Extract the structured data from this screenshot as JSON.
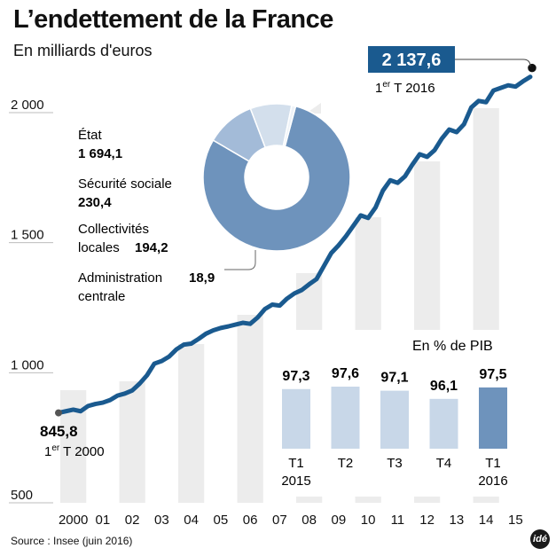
{
  "title": "L’endettement de la France",
  "subtitle": "En milliards d'euros",
  "source": "Source : Insee (juin 2016)",
  "logo": "idé",
  "colors": {
    "line": "#1a5a8f",
    "column": "#ececec",
    "bar": "#c8d7e8",
    "bar_highlight": "#6e93bc",
    "callout": "#1a5a8f"
  },
  "chart_data": [
    {
      "type": "line",
      "y_tick_labels": [
        "2 000",
        "1 500",
        "1 000",
        "500"
      ],
      "y_ticks": [
        2000,
        1500,
        1000,
        500
      ],
      "ylim": [
        500,
        2250
      ],
      "x_tick_labels": [
        "2000",
        "01",
        "02",
        "03",
        "04",
        "05",
        "06",
        "07",
        "08",
        "09",
        "10",
        "11",
        "12",
        "13",
        "14",
        "15"
      ],
      "series": [
        {
          "x": [
            2000.0,
            2000.25,
            2000.5,
            2000.75,
            2001.0,
            2001.25,
            2001.5,
            2001.75,
            2002.0,
            2002.25,
            2002.5,
            2002.75,
            2003.0,
            2003.25,
            2003.5,
            2003.75,
            2004.0,
            2004.25,
            2004.5,
            2004.75,
            2005.0,
            2005.25,
            2005.5,
            2005.75,
            2006.0,
            2006.25,
            2006.5,
            2006.75,
            2007.0,
            2007.25,
            2007.5,
            2007.75,
            2008.0,
            2008.25,
            2008.5,
            2008.75,
            2009.0,
            2009.25,
            2009.5,
            2009.75,
            2010.0,
            2010.25,
            2010.5,
            2010.75,
            2011.0,
            2011.25,
            2011.5,
            2011.75,
            2012.0,
            2012.25,
            2012.5,
            2012.75,
            2013.0,
            2013.25,
            2013.5,
            2013.75,
            2014.0,
            2014.25,
            2014.5,
            2014.75,
            2015.0,
            2015.25,
            2015.5,
            2015.75,
            2016.0
          ],
          "y": [
            845.8,
            852,
            858,
            852,
            872,
            880,
            885,
            895,
            912,
            920,
            932,
            958,
            990,
            1035,
            1045,
            1062,
            1090,
            1108,
            1112,
            1130,
            1150,
            1163,
            1172,
            1178,
            1185,
            1192,
            1188,
            1212,
            1245,
            1262,
            1258,
            1285,
            1305,
            1318,
            1340,
            1360,
            1410,
            1460,
            1490,
            1525,
            1565,
            1605,
            1595,
            1635,
            1700,
            1740,
            1730,
            1755,
            1800,
            1840,
            1830,
            1855,
            1900,
            1935,
            1925,
            1955,
            2020,
            2045,
            2040,
            2085,
            2095,
            2105,
            2100,
            2120,
            2137.6
          ]
        }
      ],
      "start_label": {
        "value": "845,8",
        "period_prefix": "1",
        "period_sup": "er",
        "period_suffix": " T 2000"
      },
      "end_label": {
        "value": "2 137,6",
        "period_prefix": "1",
        "period_sup": "er",
        "period_suffix": " T 2016"
      }
    },
    {
      "type": "pie",
      "donut": true,
      "slices": [
        {
          "label": "État",
          "value": 1694.1,
          "value_label": "1 694,1",
          "color": "#6e93bc"
        },
        {
          "label": "Sécurité sociale",
          "value": 230.4,
          "value_label": "230,4",
          "color": "#a3bbd8"
        },
        {
          "label_lines": [
            "Collectivités",
            "locales"
          ],
          "value": 194.2,
          "value_label": "194,2",
          "color": "#d3dfec"
        },
        {
          "label_lines": [
            "Administration",
            "centrale"
          ],
          "value": 18.9,
          "value_label": "18,9",
          "color": "#eef3f8"
        }
      ]
    },
    {
      "type": "bar",
      "title": "En % de PIB",
      "categories": [
        [
          "T1",
          "2015"
        ],
        [
          "T2"
        ],
        [
          "T3"
        ],
        [
          "T4"
        ],
        [
          "T1",
          "2016"
        ]
      ],
      "values": [
        97.3,
        97.6,
        97.1,
        96.1,
        97.5
      ],
      "value_labels": [
        "97,3",
        "97,6",
        "97,1",
        "96,1",
        "97,5"
      ],
      "highlight_index": 4
    }
  ]
}
